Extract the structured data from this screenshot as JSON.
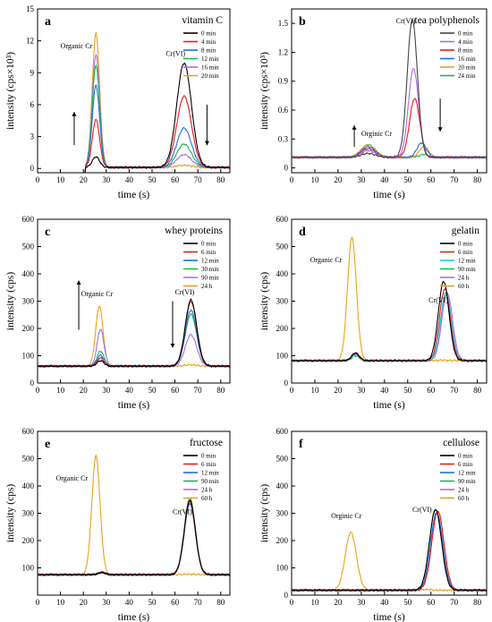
{
  "chart_data": [
    {
      "type": "line",
      "panel": "a",
      "title": "vitamin C",
      "xlabel": "time (s)",
      "ylabel": "intensity (cps×10³)",
      "xlim": [
        0,
        84
      ],
      "ylim": [
        -0.4,
        15
      ],
      "xticks": [
        0,
        10,
        20,
        30,
        40,
        50,
        60,
        70,
        80
      ],
      "yticks": [
        0,
        3,
        6,
        9,
        12,
        15
      ],
      "legend_position": "top-right",
      "baseline": 0.1,
      "start_x": 21,
      "series": [
        {
          "name": "0 min",
          "color": "#000000",
          "peaks": [
            {
              "x": 25.5,
              "h": 1.0,
              "w": 1.6
            },
            {
              "x": 64,
              "h": 9.8,
              "w": 3.2
            }
          ]
        },
        {
          "name": "4 min",
          "color": "#e8191c",
          "peaks": [
            {
              "x": 25.5,
              "h": 4.5,
              "w": 1.6
            },
            {
              "x": 64,
              "h": 6.7,
              "w": 3.2
            }
          ]
        },
        {
          "name": "8 min",
          "color": "#1e6fe0",
          "peaks": [
            {
              "x": 25.5,
              "h": 7.7,
              "w": 1.6
            },
            {
              "x": 64,
              "h": 3.7,
              "w": 3.2
            }
          ]
        },
        {
          "name": "12 min",
          "color": "#22b35a",
          "peaks": [
            {
              "x": 25.5,
              "h": 9.6,
              "w": 1.6
            },
            {
              "x": 64,
              "h": 2.2,
              "w": 3.2
            }
          ]
        },
        {
          "name": "16 min",
          "color": "#b26be8",
          "peaks": [
            {
              "x": 25.5,
              "h": 10.6,
              "w": 1.6
            },
            {
              "x": 64,
              "h": 1.2,
              "w": 3.2
            }
          ]
        },
        {
          "name": "20 min",
          "color": "#e8a317",
          "peaks": [
            {
              "x": 25.5,
              "h": 12.6,
              "w": 1.6
            },
            {
              "x": 64,
              "h": 0.2,
              "w": 3.2
            }
          ]
        }
      ],
      "annotations": [
        {
          "text": "Organic Cr",
          "x": 10,
          "y": 11.3
        },
        {
          "text": "Cr(VI)",
          "x": 56,
          "y": 10.6
        }
      ],
      "arrows": [
        {
          "x": 16,
          "y_from": 2.2,
          "y_to": 5.3
        },
        {
          "x": 74,
          "y_from": 6.0,
          "y_to": 2.2
        }
      ]
    },
    {
      "type": "line",
      "panel": "b",
      "title": "tea polyphenols",
      "xlabel": "time (s)",
      "ylabel": "intensity (cps×10³)",
      "xlim": [
        0,
        84
      ],
      "ylim": [
        -0.05,
        1.65
      ],
      "xticks": [
        0,
        10,
        20,
        30,
        40,
        50,
        60,
        70,
        80
      ],
      "yticks": [
        0.0,
        0.3,
        0.6,
        0.9,
        1.2,
        1.5
      ],
      "legend_position": "top-right",
      "baseline": 0.11,
      "start_x": 0,
      "series": [
        {
          "name": "0 min",
          "color": "#444444",
          "peaks": [
            {
              "x": 33,
              "h": 0.04,
              "w": 3
            },
            {
              "x": 52,
              "h": 1.43,
              "w": 2.2
            }
          ]
        },
        {
          "name": "4 min",
          "color": "#b26be8",
          "peaks": [
            {
              "x": 33,
              "h": 0.07,
              "w": 3
            },
            {
              "x": 52.5,
              "h": 0.92,
              "w": 2.2
            }
          ]
        },
        {
          "name": "8 min",
          "color": "#e8191c",
          "peaks": [
            {
              "x": 33,
              "h": 0.09,
              "w": 3
            },
            {
              "x": 53,
              "h": 0.61,
              "w": 2.2
            }
          ]
        },
        {
          "name": "16 min",
          "color": "#1e6fe0",
          "peaks": [
            {
              "x": 33,
              "h": 0.11,
              "w": 3
            },
            {
              "x": 56,
              "h": 0.15,
              "w": 2.0
            }
          ]
        },
        {
          "name": "20 min",
          "color": "#e8a317",
          "peaks": [
            {
              "x": 33,
              "h": 0.13,
              "w": 3
            },
            {
              "x": 57,
              "h": 0.11,
              "w": 2.0
            }
          ]
        },
        {
          "name": "24 min",
          "color": "#22b35a",
          "peaks": [
            {
              "x": 33,
              "h": 0.13,
              "w": 3
            },
            {
              "x": 57,
              "h": 0.03,
              "w": 2.0
            }
          ]
        }
      ],
      "annotations": [
        {
          "text": "Orginic Cr",
          "x": 30,
          "y": 0.33
        },
        {
          "text": "Cr(VI)",
          "x": 45,
          "y": 1.5
        }
      ],
      "arrows": [
        {
          "x": 27,
          "y_from": 0.22,
          "y_to": 0.44
        },
        {
          "x": 64,
          "y_from": 0.72,
          "y_to": 0.38
        }
      ]
    },
    {
      "type": "line",
      "panel": "c",
      "title": "whey proteins",
      "xlabel": "time (s)",
      "ylabel": "intensity (cps)",
      "xlim": [
        0,
        84
      ],
      "ylim": [
        0,
        600
      ],
      "xticks": [
        0,
        10,
        20,
        30,
        40,
        50,
        60,
        70,
        80
      ],
      "yticks": [
        0,
        100,
        200,
        300,
        400,
        500,
        600
      ],
      "legend_position": "top-right",
      "baseline": 62,
      "start_x": 0,
      "series": [
        {
          "name": "0 min",
          "color": "#000000",
          "peaks": [
            {
              "x": 27.5,
              "h": 20,
              "w": 1.5
            },
            {
              "x": 67,
              "h": 242,
              "w": 2.5
            }
          ]
        },
        {
          "name": "6 min",
          "color": "#e8191c",
          "peaks": [
            {
              "x": 27.5,
              "h": 30,
              "w": 1.5
            },
            {
              "x": 67,
              "h": 236,
              "w": 2.5
            }
          ]
        },
        {
          "name": "12 min",
          "color": "#1e6fe0",
          "peaks": [
            {
              "x": 27.5,
              "h": 40,
              "w": 1.5
            },
            {
              "x": 67,
              "h": 205,
              "w": 2.5
            }
          ]
        },
        {
          "name": "30 min",
          "color": "#22b35a",
          "peaks": [
            {
              "x": 27.5,
              "h": 55,
              "w": 1.5
            },
            {
              "x": 67,
              "h": 190,
              "w": 2.5
            }
          ]
        },
        {
          "name": "90 min",
          "color": "#b26be8",
          "peaks": [
            {
              "x": 27.5,
              "h": 135,
              "w": 1.5
            },
            {
              "x": 67,
              "h": 115,
              "w": 2.5
            }
          ]
        },
        {
          "name": "24 h",
          "color": "#e8a317",
          "peaks": [
            {
              "x": 27,
              "h": 220,
              "w": 1.6
            },
            {
              "x": 67,
              "h": 5,
              "w": 2.5
            }
          ]
        }
      ],
      "annotations": [
        {
          "text": "Organic Cr",
          "x": 19,
          "y": 318
        },
        {
          "text": "Cr(VI)",
          "x": 60,
          "y": 325
        }
      ],
      "arrows": [
        {
          "x": 18,
          "y_from": 195,
          "y_to": 375
        },
        {
          "x": 59,
          "y_from": 300,
          "y_to": 130
        }
      ]
    },
    {
      "type": "line",
      "panel": "d",
      "title": "gelatin",
      "xlabel": "time (s)",
      "ylabel": "intensity (cps)",
      "xlim": [
        0,
        84
      ],
      "ylim": [
        0,
        600
      ],
      "xticks": [
        0,
        10,
        20,
        30,
        40,
        50,
        60,
        70,
        80
      ],
      "yticks": [
        0,
        100,
        200,
        300,
        400,
        500,
        600
      ],
      "legend_position": "top-right",
      "baseline": 82,
      "start_x": 0,
      "series": [
        {
          "name": "0 min",
          "color": "#000000",
          "peaks": [
            {
              "x": 27.5,
              "h": 28,
              "w": 1.6
            },
            {
              "x": 65.5,
              "h": 290,
              "w": 2.3
            }
          ]
        },
        {
          "name": "6 min",
          "color": "#e8191c",
          "peaks": [
            {
              "x": 27.5,
              "h": 28,
              "w": 1.6
            },
            {
              "x": 66,
              "h": 262,
              "w": 2.3
            }
          ]
        },
        {
          "name": "12 min",
          "color": "#1ec8e8",
          "peaks": [
            {
              "x": 27.5,
              "h": 20,
              "w": 1.6
            },
            {
              "x": 66.5,
              "h": 250,
              "w": 2.3
            }
          ]
        },
        {
          "name": "90 min",
          "color": "#22b35a",
          "peaks": [
            {
              "x": 27.5,
              "h": 18,
              "w": 1.6
            },
            {
              "x": 66.5,
              "h": 242,
              "w": 2.3
            }
          ]
        },
        {
          "name": "24 h",
          "color": "#b26be8",
          "peaks": [
            {
              "x": 27.5,
              "h": 22,
              "w": 1.6
            },
            {
              "x": 67,
              "h": 248,
              "w": 2.3
            }
          ]
        },
        {
          "name": "60 h",
          "color": "#e8a317",
          "peaks": [
            {
              "x": 26,
              "h": 452,
              "w": 1.9
            },
            {
              "x": 65,
              "h": 2,
              "w": 2.3
            }
          ]
        }
      ],
      "annotations": [
        {
          "text": "Organic Cr",
          "x": 8,
          "y": 442
        },
        {
          "text": "Cr(VI)",
          "x": 59,
          "y": 295
        }
      ],
      "arrows": []
    },
    {
      "type": "line",
      "panel": "e",
      "title": "fructose",
      "xlabel": "time (s)",
      "ylabel": "intensity (cps)",
      "xlim": [
        0,
        84
      ],
      "ylim": [
        0,
        600
      ],
      "xticks": [
        0,
        10,
        20,
        30,
        40,
        50,
        60,
        70,
        80
      ],
      "yticks": [
        100,
        200,
        300,
        400,
        500,
        600
      ],
      "legend_position": "top-right",
      "baseline": 75,
      "start_x": 0,
      "series": [
        {
          "name": "0 min",
          "color": "#000000",
          "peaks": [
            {
              "x": 28,
              "h": 8,
              "w": 1.6
            },
            {
              "x": 66.5,
              "h": 272,
              "w": 2.4
            }
          ]
        },
        {
          "name": "6 min",
          "color": "#e8191c",
          "peaks": [
            {
              "x": 28,
              "h": 8,
              "w": 1.6
            },
            {
              "x": 66.5,
              "h": 268,
              "w": 2.4
            }
          ]
        },
        {
          "name": "12 min",
          "color": "#1e6fe0",
          "peaks": [
            {
              "x": 28,
              "h": 8,
              "w": 1.6
            },
            {
              "x": 66.5,
              "h": 262,
              "w": 2.4
            }
          ]
        },
        {
          "name": "90 min",
          "color": "#22b35a",
          "peaks": [
            {
              "x": 28,
              "h": 8,
              "w": 1.6
            },
            {
              "x": 66.5,
              "h": 280,
              "w": 2.4
            }
          ]
        },
        {
          "name": "24 h",
          "color": "#b26be8",
          "peaks": [
            {
              "x": 28,
              "h": 8,
              "w": 1.6
            },
            {
              "x": 66.5,
              "h": 258,
              "w": 2.4
            }
          ]
        },
        {
          "name": "60 h",
          "color": "#e8a317",
          "peaks": [
            {
              "x": 25.5,
              "h": 435,
              "w": 1.8
            },
            {
              "x": 66,
              "h": 2,
              "w": 2.4
            }
          ]
        }
      ],
      "annotations": [
        {
          "text": "Organic Cr",
          "x": 8,
          "y": 420
        },
        {
          "text": "Cr(VI)",
          "x": 59,
          "y": 296
        }
      ],
      "arrows": []
    },
    {
      "type": "line",
      "panel": "f",
      "title": "cellulose",
      "xlabel": "time (s)",
      "ylabel": "intensity (cps)",
      "xlim": [
        0,
        84
      ],
      "ylim": [
        0,
        600
      ],
      "xticks": [
        0,
        10,
        20,
        30,
        40,
        50,
        60,
        70,
        80
      ],
      "yticks": [
        0,
        100,
        200,
        300,
        400,
        500,
        600
      ],
      "legend_position": "top-right",
      "baseline": 18,
      "start_x": 0,
      "series": [
        {
          "name": "0 min",
          "color": "#000000",
          "peaks": [
            {
              "x": 62,
              "h": 295,
              "w": 2.6
            }
          ]
        },
        {
          "name": "6 min",
          "color": "#e8191c",
          "peaks": [
            {
              "x": 63,
              "h": 290,
              "w": 2.6
            }
          ]
        },
        {
          "name": "12 min",
          "color": "#1e6fe0",
          "peaks": [
            {
              "x": 62.5,
              "h": 285,
              "w": 2.6
            }
          ]
        },
        {
          "name": "90 min",
          "color": "#22b35a",
          "peaks": [
            {
              "x": 62,
              "h": 298,
              "w": 2.6
            }
          ]
        },
        {
          "name": "24 h",
          "color": "#b26be8",
          "peaks": [
            {
              "x": 62.5,
              "h": 280,
              "w": 2.6
            }
          ]
        },
        {
          "name": "60 h",
          "color": "#e8a317",
          "peaks": [
            {
              "x": 25.5,
              "h": 212,
              "w": 2.4
            },
            {
              "x": 58,
              "h": 3,
              "w": 2.0
            }
          ]
        }
      ],
      "annotations": [
        {
          "text": "Orginic Cr",
          "x": 17,
          "y": 282
        },
        {
          "text": "Cr(VI)",
          "x": 52,
          "y": 305
        }
      ],
      "arrows": []
    }
  ]
}
